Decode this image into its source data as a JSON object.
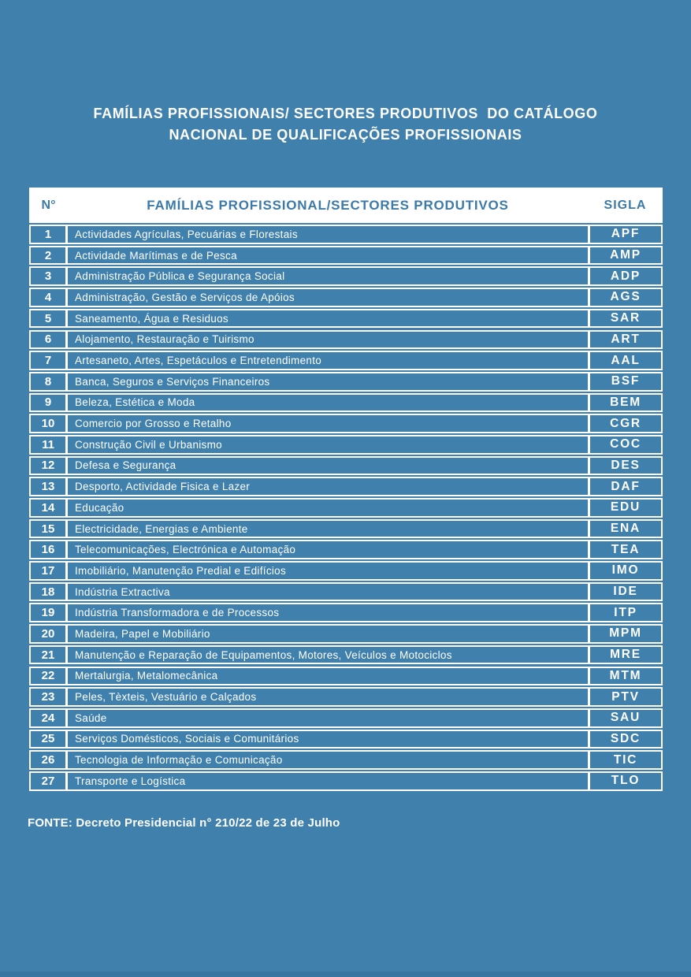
{
  "page": {
    "title_line1": "FAMÍLIAS PROFISSIONAIS/ SECTORES PRODUTIVOS  DO CATÁLOGO",
    "title_line2": "NACIONAL DE QUALIFICAÇÕES PROFISSIONAIS",
    "source_note": "FONTE: Decreto Presidencial n° 210/22 de 23 de Julho"
  },
  "colors": {
    "background": "#4080ad",
    "header_text": "#3b7aa9",
    "text": "#ffffff",
    "border": "#ffffff",
    "bottom_bar": "#3a74a0"
  },
  "table": {
    "headers": {
      "num": "N°",
      "family": "FAMÍLIAS PROFISSIONAL/SECTORES PRODUTIVOS",
      "sigla": "SIGLA"
    },
    "rows": [
      {
        "num": "1",
        "family": "Actividades Agrículas, Pecuárias e Florestais",
        "sigla": "APF"
      },
      {
        "num": "2",
        "family": "Actividade Marítimas e de Pesca",
        "sigla": "AMP"
      },
      {
        "num": "3",
        "family": "Administração Pública e Segurança Social",
        "sigla": "ADP"
      },
      {
        "num": "4",
        "family": "Administração, Gestão e Serviços de Apóios",
        "sigla": "AGS"
      },
      {
        "num": "5",
        "family": "Saneamento, Água e Residuos",
        "sigla": "SAR"
      },
      {
        "num": "6",
        "family": "Alojamento, Restauração e Tuirismo",
        "sigla": "ART"
      },
      {
        "num": "7",
        "family": "Artesaneto, Artes, Espetáculos e Entretendimento",
        "sigla": "AAL"
      },
      {
        "num": "8",
        "family": "Banca, Seguros e Serviços Financeiros",
        "sigla": "BSF"
      },
      {
        "num": "9",
        "family": "Beleza, Estética e Moda",
        "sigla": "BEM"
      },
      {
        "num": "10",
        "family": "Comercio por Grosso e Retalho",
        "sigla": "CGR"
      },
      {
        "num": "11",
        "family": "Construção Civil e Urbanismo",
        "sigla": "COC"
      },
      {
        "num": "12",
        "family": "Defesa e Segurança",
        "sigla": "DES"
      },
      {
        "num": "13",
        "family": "Desporto, Actividade Fisica e Lazer",
        "sigla": "DAF"
      },
      {
        "num": "14",
        "family": "Educação",
        "sigla": "EDU"
      },
      {
        "num": "15",
        "family": "Electricidade, Energias e Ambiente",
        "sigla": "ENA"
      },
      {
        "num": "16",
        "family": "Telecomunicações, Electrónica e Automação",
        "sigla": "TEA"
      },
      {
        "num": "17",
        "family": "Imobiliário, Manutenção Predial e Edifícios",
        "sigla": "IMO"
      },
      {
        "num": "18",
        "family": "Indústria Extractiva",
        "sigla": "IDE"
      },
      {
        "num": "19",
        "family": "Indústria Transformadora e de Processos",
        "sigla": "ITP"
      },
      {
        "num": "20",
        "family": "Madeira, Papel e Mobiliário",
        "sigla": "MPM"
      },
      {
        "num": "21",
        "family": "Manutenção e Reparação de Equipamentos, Motores, Veículos e Motociclos",
        "sigla": "MRE"
      },
      {
        "num": "22",
        "family": "Mertalurgia, Metalomecânica",
        "sigla": "MTM"
      },
      {
        "num": "23",
        "family": "Peles, Tèxteis, Vestuário e Calçados",
        "sigla": "PTV"
      },
      {
        "num": "24",
        "family": "Saúde",
        "sigla": "SAU"
      },
      {
        "num": "25",
        "family": "Serviços Domésticos, Sociais e Comunitários",
        "sigla": "SDC"
      },
      {
        "num": "26",
        "family": "Tecnologia de Informação e Comunicação",
        "sigla": "TIC"
      },
      {
        "num": "27",
        "family": "Transporte e Logística",
        "sigla": "TLO"
      }
    ]
  }
}
